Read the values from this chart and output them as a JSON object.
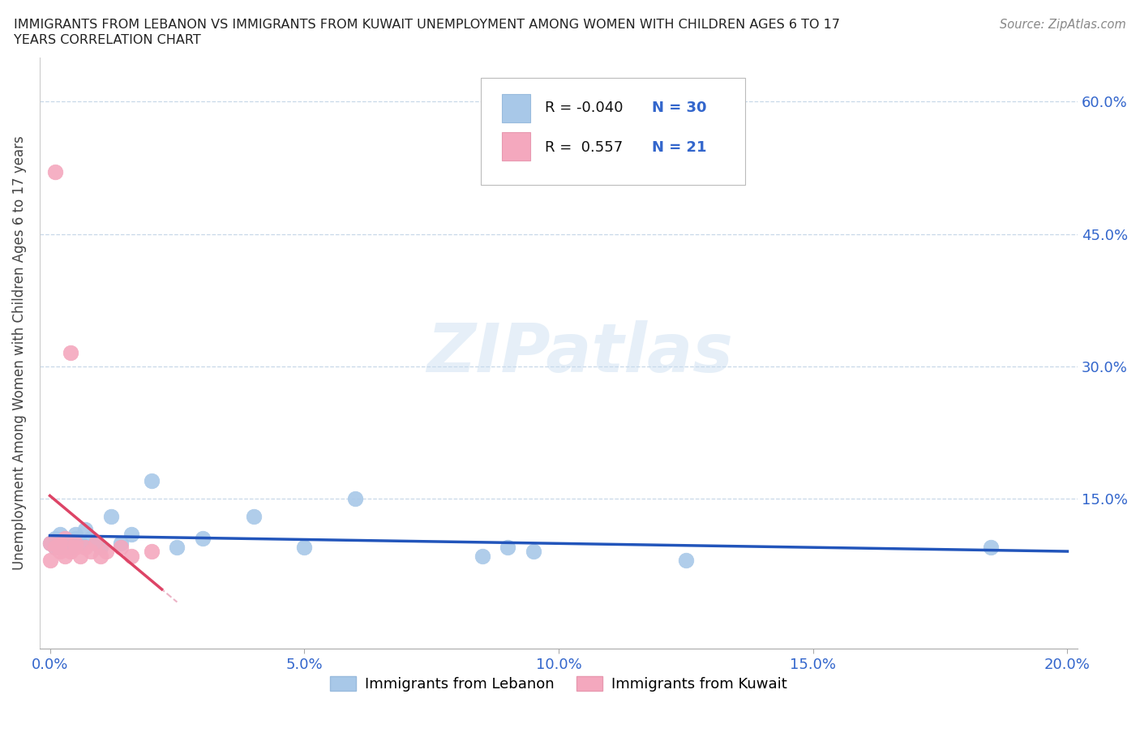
{
  "title_line1": "IMMIGRANTS FROM LEBANON VS IMMIGRANTS FROM KUWAIT UNEMPLOYMENT AMONG WOMEN WITH CHILDREN AGES 6 TO 17",
  "title_line2": "YEARS CORRELATION CHART",
  "source": "Source: ZipAtlas.com",
  "ylabel": "Unemployment Among Women with Children Ages 6 to 17 years",
  "xlim": [
    -0.002,
    0.202
  ],
  "ylim": [
    -0.02,
    0.65
  ],
  "xticks": [
    0.0,
    0.05,
    0.1,
    0.15,
    0.2
  ],
  "yticks": [
    0.15,
    0.3,
    0.45,
    0.6
  ],
  "xticklabels": [
    "0.0%",
    "5.0%",
    "10.0%",
    "15.0%",
    "20.0%"
  ],
  "yticklabels_right": [
    "15.0%",
    "30.0%",
    "45.0%",
    "60.0%"
  ],
  "lebanon_color": "#a8c8e8",
  "kuwait_color": "#f4a8be",
  "line_lebanon_color": "#2255bb",
  "line_kuwait_color": "#dd4466",
  "line_kuwait_dash_color": "#e8a0b8",
  "lebanon_R": -0.04,
  "lebanon_N": 30,
  "kuwait_R": 0.557,
  "kuwait_N": 21,
  "legend_label_1": "Immigrants from Lebanon",
  "legend_label_2": "Immigrants from Kuwait",
  "watermark": "ZIPatlas",
  "lebanon_x": [
    0.0,
    0.001,
    0.001,
    0.002,
    0.002,
    0.003,
    0.003,
    0.004,
    0.004,
    0.005,
    0.005,
    0.006,
    0.007,
    0.008,
    0.009,
    0.01,
    0.012,
    0.014,
    0.016,
    0.02,
    0.025,
    0.03,
    0.04,
    0.05,
    0.06,
    0.085,
    0.09,
    0.095,
    0.125,
    0.185
  ],
  "lebanon_y": [
    0.1,
    0.095,
    0.105,
    0.1,
    0.11,
    0.095,
    0.105,
    0.1,
    0.095,
    0.105,
    0.11,
    0.1,
    0.115,
    0.105,
    0.1,
    0.095,
    0.13,
    0.1,
    0.11,
    0.17,
    0.095,
    0.105,
    0.13,
    0.095,
    0.15,
    0.085,
    0.095,
    0.09,
    0.08,
    0.095
  ],
  "kuwait_x": [
    0.0,
    0.0,
    0.001,
    0.001,
    0.002,
    0.002,
    0.003,
    0.003,
    0.004,
    0.004,
    0.005,
    0.005,
    0.006,
    0.007,
    0.008,
    0.009,
    0.01,
    0.011,
    0.014,
    0.016,
    0.02
  ],
  "kuwait_y": [
    0.1,
    0.08,
    0.52,
    0.095,
    0.1,
    0.09,
    0.105,
    0.085,
    0.315,
    0.09,
    0.095,
    0.1,
    0.085,
    0.095,
    0.09,
    0.1,
    0.085,
    0.09,
    0.095,
    0.085,
    0.09
  ]
}
